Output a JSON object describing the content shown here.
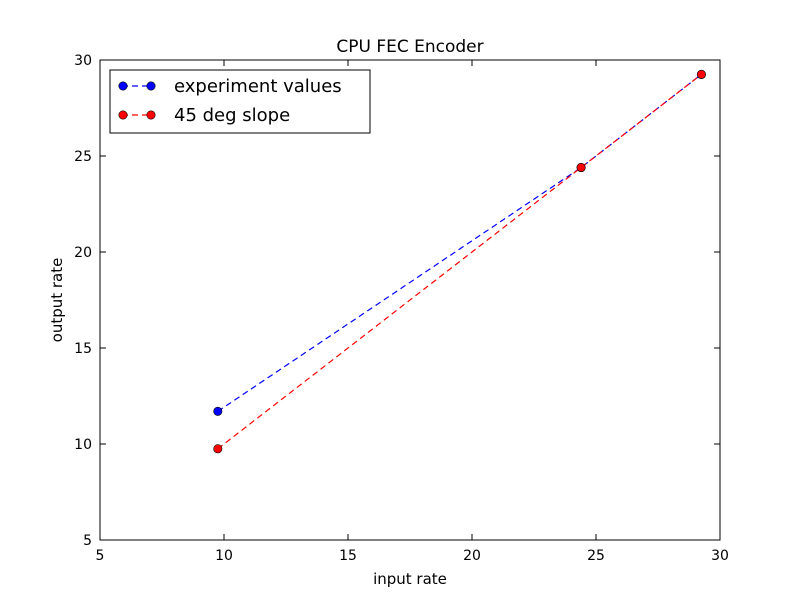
{
  "chart_data": {
    "type": "line",
    "title": "CPU FEC Encoder",
    "xlabel": "input rate",
    "ylabel": "output rate",
    "xlim": [
      5,
      30
    ],
    "ylim": [
      5,
      30
    ],
    "x_ticks": [
      5,
      10,
      15,
      20,
      25,
      30
    ],
    "y_ticks": [
      5,
      10,
      15,
      20,
      25,
      30
    ],
    "grid": false,
    "legend_position": "top-left",
    "series": [
      {
        "name": "experiment values",
        "color": "#0000ff",
        "line_style": "dashed",
        "marker": "circle",
        "x": [
          9.75,
          24.4,
          29.25
        ],
        "y": [
          11.7,
          24.4,
          29.25
        ]
      },
      {
        "name": "45 deg slope",
        "color": "#ff0000",
        "line_style": "dashed",
        "marker": "circle",
        "x": [
          9.75,
          24.4,
          29.25
        ],
        "y": [
          9.75,
          24.4,
          29.25
        ]
      }
    ]
  }
}
